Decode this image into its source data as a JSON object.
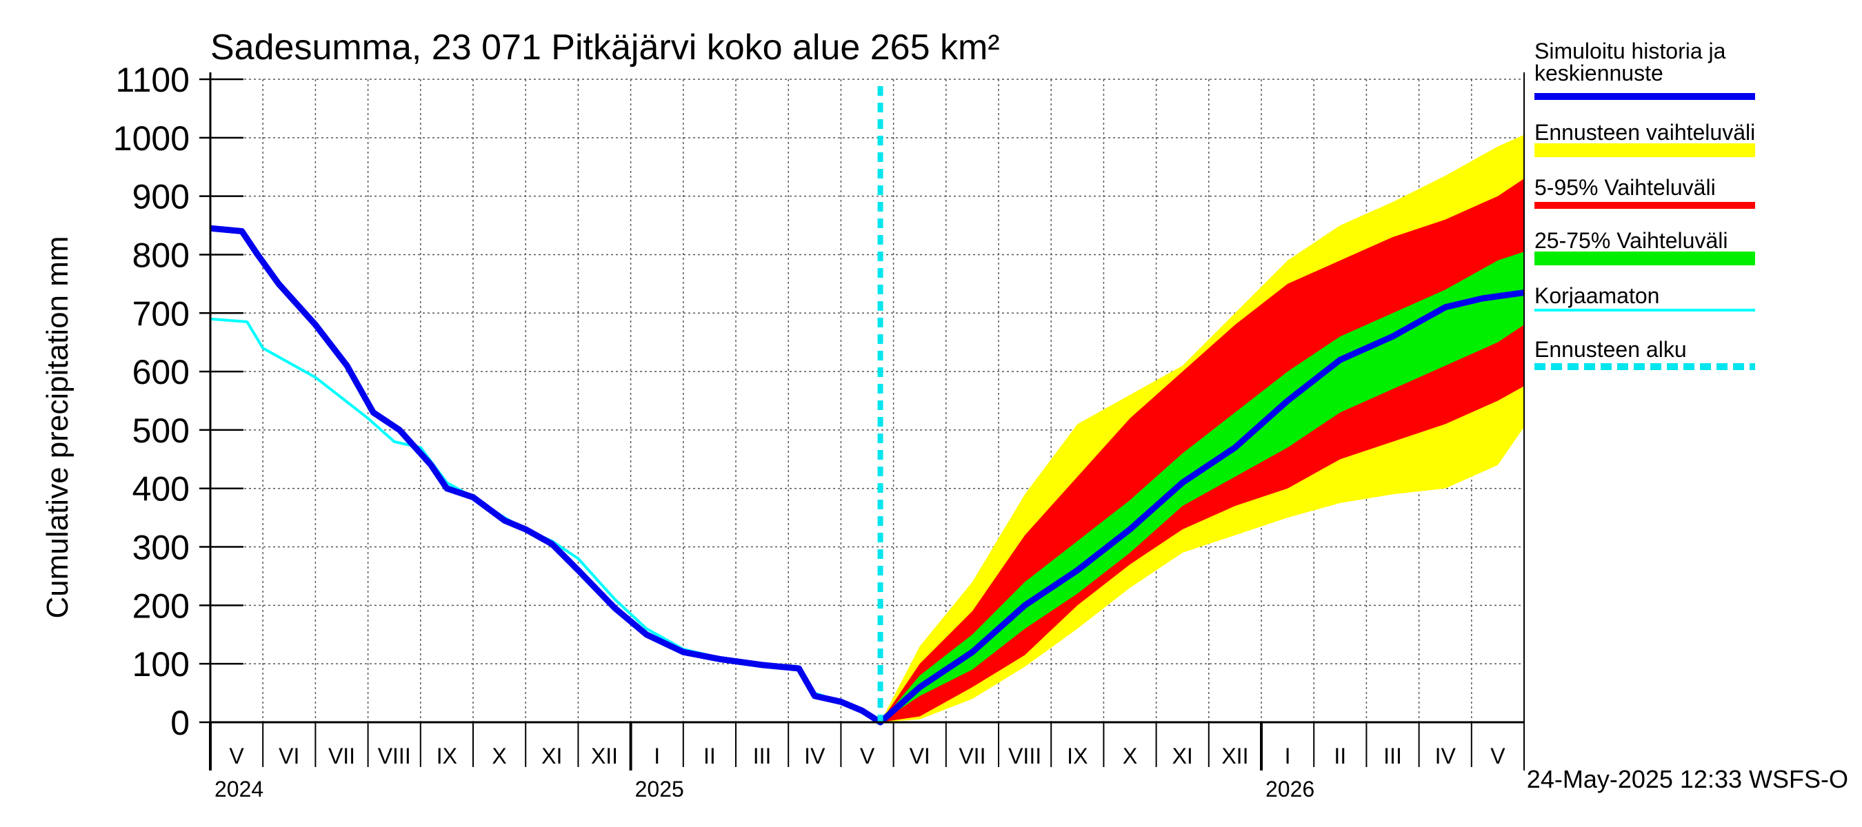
{
  "chart_data": {
    "type": "area",
    "title": "Sadesumma, 23 071 Pitkäjärvi koko alue 265 km²",
    "ylabel": "Cumulative precipitation   mm",
    "ylim": [
      0,
      1100
    ],
    "yticks": [
      0,
      100,
      200,
      300,
      400,
      500,
      600,
      700,
      800,
      900,
      1000,
      1100
    ],
    "xlim": [
      0,
      25
    ],
    "month_labels": [
      "V",
      "VI",
      "VII",
      "VIII",
      "IX",
      "X",
      "XI",
      "XII",
      "I",
      "II",
      "III",
      "IV",
      "V",
      "VI",
      "VII",
      "VIII",
      "IX",
      "X",
      "XI",
      "XII",
      "I",
      "II",
      "III",
      "IV",
      "V"
    ],
    "year_labels": [
      {
        "label": "2024",
        "x": 0
      },
      {
        "label": "2025",
        "x": 8
      },
      {
        "label": "2026",
        "x": 20
      }
    ],
    "forecast_start_x": 12.75,
    "legend": [
      {
        "label": "Simuloitu historia ja keskiennuste",
        "color": "#0000ee",
        "style": "thick"
      },
      {
        "label": "Ennusteen vaihteluväli",
        "color": "#ffff00",
        "style": "band"
      },
      {
        "label": "5-95% Vaihteluväli",
        "color": "#ff0000",
        "style": "thin-band"
      },
      {
        "label": "25-75% Vaihteluväli",
        "color": "#00ee00",
        "style": "band"
      },
      {
        "label": "Korjaamaton",
        "color": "#00ffff",
        "style": "thin"
      },
      {
        "label": "Ennusteen alku",
        "color": "#00e5ee",
        "style": "dashed"
      }
    ],
    "series": [
      {
        "name": "Simuloitu historia ja keskiennuste",
        "x": [
          0,
          0.6,
          0.9,
          1.3,
          2.0,
          2.6,
          3.1,
          3.6,
          4.2,
          4.5,
          5.0,
          5.6,
          6.0,
          6.5,
          7.0,
          7.7,
          8.3,
          9.0,
          9.7,
          10.5,
          11.2,
          11.5,
          12.0,
          12.4,
          12.75,
          13.5,
          14.5,
          15.5,
          16.5,
          17.5,
          18.5,
          19.5,
          20.5,
          21.5,
          22.5,
          23.5,
          24.2,
          25.0
        ],
        "values": [
          845,
          840,
          800,
          750,
          680,
          610,
          530,
          500,
          440,
          400,
          385,
          345,
          330,
          305,
          260,
          195,
          150,
          120,
          108,
          98,
          92,
          45,
          35,
          20,
          0,
          60,
          120,
          200,
          260,
          330,
          410,
          470,
          550,
          620,
          660,
          710,
          725,
          735
        ]
      },
      {
        "name": "Korjaamaton",
        "x": [
          0,
          0.7,
          1.0,
          2.0,
          3.0,
          3.5,
          4.0,
          4.5,
          5.0,
          5.6,
          6.0,
          6.5,
          7.0,
          7.7,
          8.3,
          9.0,
          9.7,
          10.5,
          11.2,
          11.5,
          12.0,
          12.4,
          12.75
        ],
        "values": [
          690,
          685,
          640,
          590,
          520,
          480,
          470,
          410,
          385,
          350,
          330,
          310,
          280,
          210,
          160,
          125,
          110,
          100,
          95,
          50,
          35,
          20,
          0
        ]
      },
      {
        "name": "Ennusteen vaihteluväli (yläraja)",
        "x": [
          12.75,
          13.5,
          14.5,
          15.5,
          16.5,
          17.5,
          18.5,
          19.5,
          20.5,
          21.5,
          22.5,
          23.5,
          24.5,
          25.0
        ],
        "values": [
          0,
          130,
          240,
          390,
          510,
          560,
          610,
          700,
          790,
          850,
          890,
          935,
          985,
          1005
        ]
      },
      {
        "name": "Ennusteen vaihteluväli (alaraja)",
        "x": [
          12.75,
          13.5,
          14.5,
          15.5,
          16.5,
          17.5,
          18.5,
          19.5,
          20.5,
          21.5,
          22.5,
          23.5,
          24.5,
          25.0
        ],
        "values": [
          0,
          5,
          40,
          95,
          160,
          230,
          290,
          320,
          350,
          375,
          390,
          400,
          440,
          505
        ]
      },
      {
        "name": "5-95% (yläraja)",
        "x": [
          12.75,
          13.5,
          14.5,
          15.5,
          16.5,
          17.5,
          18.5,
          19.5,
          20.5,
          21.5,
          22.5,
          23.5,
          24.5,
          25.0
        ],
        "values": [
          0,
          100,
          190,
          320,
          420,
          520,
          600,
          680,
          750,
          790,
          830,
          860,
          900,
          930
        ]
      },
      {
        "name": "5-95% (alaraja)",
        "x": [
          12.75,
          13.5,
          14.5,
          15.5,
          16.5,
          17.5,
          18.5,
          19.5,
          20.5,
          21.5,
          22.5,
          23.5,
          24.5,
          25.0
        ],
        "values": [
          0,
          10,
          60,
          115,
          200,
          270,
          330,
          370,
          400,
          450,
          480,
          510,
          550,
          575
        ]
      },
      {
        "name": "25-75% (yläraja)",
        "x": [
          12.75,
          13.5,
          14.5,
          15.5,
          16.5,
          17.5,
          18.5,
          19.5,
          20.5,
          21.5,
          22.5,
          23.5,
          24.5,
          25.0
        ],
        "values": [
          0,
          80,
          150,
          240,
          310,
          380,
          460,
          530,
          600,
          660,
          700,
          740,
          790,
          805
        ]
      },
      {
        "name": "25-75% (alaraja)",
        "x": [
          12.75,
          13.5,
          14.5,
          15.5,
          16.5,
          17.5,
          18.5,
          19.5,
          20.5,
          21.5,
          22.5,
          23.5,
          24.5,
          25.0
        ],
        "values": [
          0,
          45,
          90,
          160,
          220,
          290,
          370,
          420,
          470,
          530,
          570,
          610,
          650,
          680
        ]
      }
    ]
  },
  "footer": {
    "timestamp": "24-May-2025 12:33 WSFS-O"
  }
}
